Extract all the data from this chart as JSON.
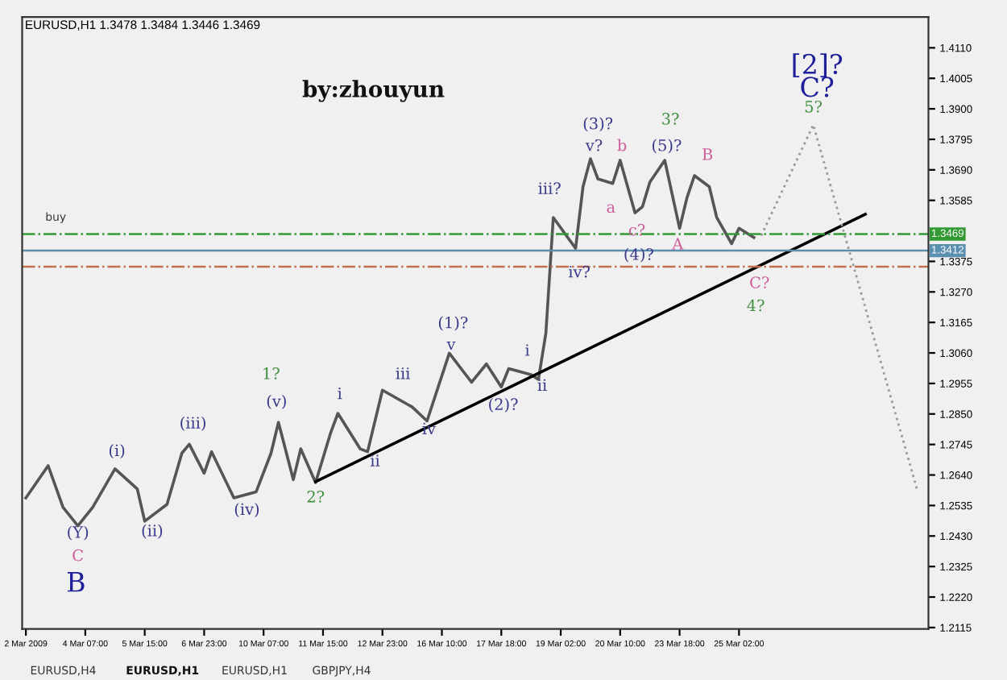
{
  "chart_data": {
    "type": "line",
    "title": "EURUSD,H1 1.3478 1.3484 1.3446 1.3469",
    "categories": [
      "2 Mar 2009",
      null,
      null,
      null,
      null,
      null,
      null,
      null,
      "4 Mar 07:00",
      null,
      null,
      null,
      null,
      null,
      null,
      null,
      "5 Mar 15:00",
      null,
      null,
      null,
      null,
      null,
      null,
      null,
      "6 Mar 23:00",
      null,
      null,
      null,
      null,
      null,
      null,
      null,
      "10 Mar 07:00",
      null,
      null,
      null,
      null,
      null,
      null,
      null,
      "11 Mar 15:00",
      null,
      null,
      null,
      null,
      null,
      null,
      null,
      "12 Mar 23:00",
      null,
      null,
      null,
      null,
      null,
      null,
      null,
      "16 Mar 10:00",
      null,
      null,
      null,
      null,
      null,
      null,
      null,
      "17 Mar 18:00",
      null,
      null,
      null,
      null,
      null,
      null,
      null,
      "19 Mar 02:00",
      null,
      null,
      null,
      null,
      null,
      null,
      null,
      "20 Mar 10:00",
      null,
      null,
      null,
      null,
      null,
      null,
      null,
      "23 Mar 18:00",
      null,
      null,
      null,
      null,
      null,
      null,
      null,
      "25 Mar 02:00",
      null,
      null,
      null,
      null,
      null,
      null,
      null,
      null,
      null,
      null,
      null,
      null,
      null,
      null,
      null,
      null,
      null,
      null,
      null,
      null,
      null,
      null,
      null,
      null,
      null
    ],
    "ylim": [
      1.211,
      1.4216
    ],
    "yticks": [
      {
        "value": 1.411,
        "label": "1.4110"
      },
      {
        "value": 1.4005,
        "label": "1.4005"
      },
      {
        "value": 1.39,
        "label": "1.3900"
      },
      {
        "value": 1.3795,
        "label": "1.3795"
      },
      {
        "value": 1.369,
        "label": "1.3690"
      },
      {
        "value": 1.3585,
        "label": "1.3585"
      },
      {
        "value": 1.3375,
        "label": "1.3375"
      },
      {
        "value": 1.327,
        "label": "1.3270"
      },
      {
        "value": 1.3165,
        "label": "1.3165"
      },
      {
        "value": 1.306,
        "label": "1.3060"
      },
      {
        "value": 1.2955,
        "label": "1.2955"
      },
      {
        "value": 1.285,
        "label": "1.2850"
      },
      {
        "value": 1.2745,
        "label": "1.2745"
      },
      {
        "value": 1.264,
        "label": "1.2640"
      },
      {
        "value": 1.2535,
        "label": "1.2535"
      },
      {
        "value": 1.243,
        "label": "1.2430"
      },
      {
        "value": 1.2325,
        "label": "1.2325"
      },
      {
        "value": 1.222,
        "label": "1.2220"
      },
      {
        "value": 1.2115,
        "label": "1.2115"
      }
    ],
    "grid": false,
    "legend": false,
    "series": [
      {
        "color": "#555555",
        "values": [
          1.2561,
          null,
          null,
          1.2672,
          null,
          1.2529,
          null,
          1.2465,
          null,
          1.2529,
          null,
          null,
          1.2661,
          null,
          null,
          1.2592,
          1.2481,
          null,
          null,
          1.2539,
          null,
          1.2715,
          1.2746,
          null,
          1.2646,
          1.272,
          null,
          null,
          1.2561,
          null,
          null,
          1.2582,
          null,
          1.2715,
          1.2821,
          null,
          1.2624,
          1.273,
          null,
          1.2614,
          null,
          1.2783,
          1.2852,
          null,
          null,
          1.273,
          1.272,
          null,
          1.2932,
          null,
          null,
          null,
          1.2874,
          null,
          1.2826,
          null,
          null,
          1.3059,
          null,
          null,
          1.2959,
          null,
          1.3022,
          null,
          1.2943,
          1.3006,
          null,
          null,
          1.2985,
          1.2969,
          1.3128,
          1.3526,
          null,
          null,
          1.342,
          1.3632,
          1.3728,
          1.3659,
          null,
          1.3643,
          1.3723,
          null,
          1.3542,
          1.3563,
          1.3648,
          null,
          1.3723,
          null,
          1.3489,
          1.3595,
          1.367,
          null,
          1.3632,
          1.3526,
          null,
          1.3436,
          1.3489,
          null,
          1.3457,
          null,
          null,
          null,
          null,
          null,
          null,
          null,
          null,
          null,
          null,
          null,
          null,
          null,
          null,
          null,
          null,
          null,
          null,
          null,
          null,
          null,
          null,
          null
        ]
      },
      {
        "color": "#000000",
        "values": [
          null,
          null,
          null,
          null,
          null,
          null,
          null,
          null,
          null,
          null,
          null,
          null,
          null,
          null,
          null,
          null,
          null,
          null,
          null,
          null,
          null,
          null,
          null,
          null,
          null,
          null,
          null,
          null,
          null,
          null,
          null,
          null,
          null,
          null,
          null,
          null,
          null,
          null,
          null,
          1.2617,
          null,
          null,
          null,
          null,
          null,
          null,
          null,
          null,
          null,
          null,
          null,
          null,
          null,
          null,
          null,
          null,
          null,
          null,
          null,
          null,
          null,
          null,
          null,
          null,
          null,
          null,
          null,
          null,
          null,
          null,
          null,
          null,
          null,
          null,
          null,
          null,
          null,
          null,
          null,
          null,
          null,
          null,
          null,
          null,
          null,
          null,
          null,
          null,
          null,
          null,
          null,
          null,
          null,
          null,
          null,
          null,
          null,
          null,
          null,
          null,
          null,
          null,
          null,
          null,
          null,
          null,
          null,
          null,
          null,
          null,
          null,
          null,
          null,
          1.3537,
          null,
          null,
          null,
          null,
          null,
          null,
          null,
          null
        ]
      },
      {
        "color": "#999999",
        "line_style": "dotted",
        "values": [
          null,
          null,
          null,
          null,
          null,
          null,
          null,
          null,
          null,
          null,
          null,
          null,
          null,
          null,
          null,
          null,
          null,
          null,
          null,
          null,
          null,
          null,
          null,
          null,
          null,
          null,
          null,
          null,
          null,
          null,
          null,
          null,
          null,
          null,
          null,
          null,
          null,
          null,
          null,
          null,
          null,
          null,
          null,
          null,
          null,
          null,
          null,
          null,
          null,
          null,
          null,
          null,
          null,
          null,
          null,
          null,
          null,
          null,
          null,
          null,
          null,
          null,
          null,
          null,
          null,
          null,
          null,
          null,
          null,
          null,
          null,
          null,
          null,
          null,
          null,
          null,
          null,
          null,
          null,
          null,
          null,
          null,
          null,
          null,
          null,
          null,
          null,
          null,
          null,
          null,
          null,
          null,
          null,
          null,
          null,
          null,
          null,
          null,
          null,
          1.3464,
          null,
          null,
          null,
          null,
          null,
          null,
          1.3845,
          null,
          null,
          null,
          null,
          null,
          null,
          null,
          null,
          null,
          null,
          null,
          null,
          null,
          1.2587,
          null
        ]
      }
    ],
    "ref_lines": [
      {
        "axis": "y",
        "value": 1.3469,
        "label": "1.3469",
        "color": "#339933",
        "line_style": "dashdot"
      },
      {
        "axis": "y",
        "value": 1.3412,
        "label": "1.3412",
        "color": "#5b8fb0",
        "line_style": "solid"
      },
      {
        "axis": "y",
        "value": 1.3357,
        "color": "#c0704a",
        "line_style": "dashdot"
      }
    ],
    "annotations": [
      "by:zhouyun",
      "buy",
      "EURUSD,H4",
      "EURUSD,H1",
      "EURUSD,H1",
      "GBPJPY,H4",
      "(Y)",
      "C",
      "B",
      "(i)",
      "(ii)",
      "(iii)",
      "(iv)",
      "(v)",
      "1?",
      "2?",
      "i",
      "ii",
      "iii",
      "iv",
      "v",
      "(1)?",
      "(2)?",
      "i",
      "ii",
      "iii?",
      "iv?",
      "(3)?",
      "v?",
      "a",
      "b",
      "c?",
      "(4)?",
      "(5)?",
      "3?",
      "B",
      "A",
      "C?",
      "4?",
      "[2]?",
      "C?",
      "5?"
    ]
  }
}
